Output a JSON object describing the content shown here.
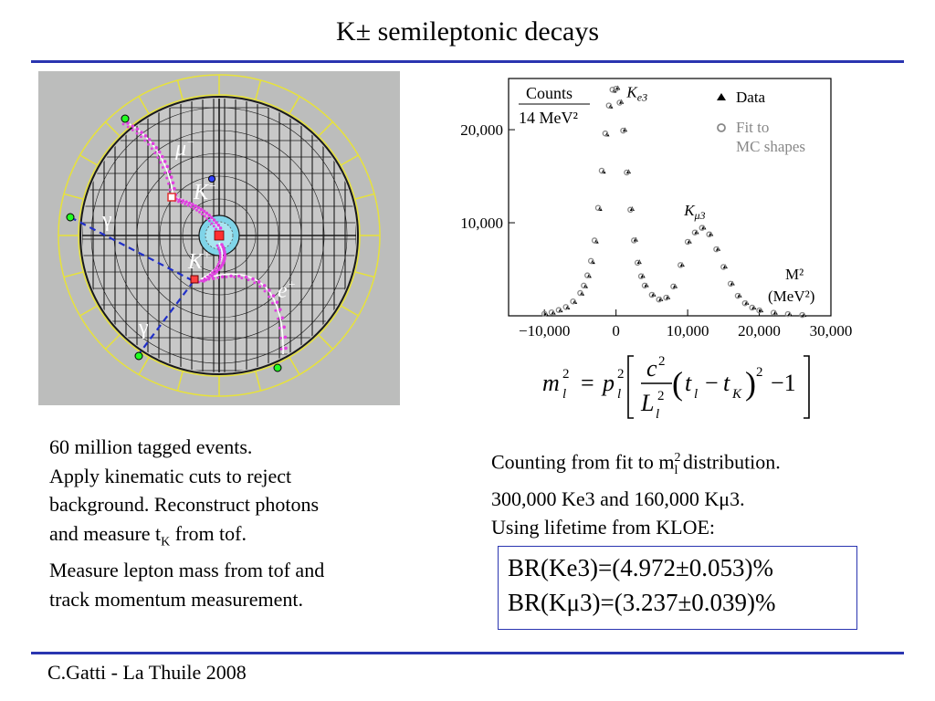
{
  "slide": {
    "title": "K± semileptonic decays",
    "footer": "C.Gatti - La Thuile 2008"
  },
  "detector_event": {
    "labels": {
      "mu": "μ",
      "mu_charge": "−",
      "k_top": "K",
      "k_top_charge": "−",
      "k_bottom": "K",
      "k_bottom_charge": "+",
      "gamma_left": "γ",
      "gamma_bottom": "γ",
      "electron": "e",
      "electron_charge": "+"
    },
    "colors": {
      "background": "#bcbdbc",
      "outer_ring": "#e7e23a",
      "chamber_lines": "#1a1a1a",
      "hits": "#e040e0",
      "photon_path": "#2230c8",
      "tracks": "#ffffff"
    }
  },
  "chart_data": {
    "type": "scatter",
    "ylabel": "Counts",
    "ylabel_unit": "14 MeV²",
    "xlabel": "M²",
    "xlabel_unit": "(MeV²)",
    "xlim": [
      -15000,
      30000
    ],
    "ylim": [
      0,
      25500
    ],
    "x_ticks": [
      -10000,
      0,
      10000,
      20000,
      30000
    ],
    "x_tick_labels": [
      "−10,000",
      "0",
      "10,000",
      "20,000",
      "30,000"
    ],
    "y_ticks": [
      10000,
      20000
    ],
    "y_tick_labels": [
      "10,000",
      "20,000"
    ],
    "grid": false,
    "legend_position": "top-right",
    "peak_labels": [
      {
        "text": "Ke3",
        "x": 1500,
        "y": 23500
      },
      {
        "text": "Kμ3",
        "x": 9500,
        "y": 10800
      }
    ],
    "series": [
      {
        "name": "Data",
        "marker": "triangle",
        "color": "#000000",
        "x": [
          -10000,
          -9000,
          -8000,
          -7000,
          -6000,
          -5000,
          -4500,
          -4000,
          -3500,
          -3000,
          -2500,
          -2000,
          -1500,
          -1000,
          -500,
          0,
          500,
          1000,
          1500,
          2000,
          2500,
          3000,
          3500,
          4000,
          5000,
          6000,
          7000,
          8000,
          9000,
          10000,
          11000,
          12000,
          13000,
          14000,
          15000,
          16000,
          17000,
          18000,
          19000,
          20000,
          22000,
          24000,
          26000
        ],
        "y": [
          200,
          350,
          600,
          900,
          1500,
          2400,
          3200,
          4300,
          5800,
          8000,
          11500,
          15500,
          19500,
          22500,
          24200,
          24500,
          23000,
          20000,
          15500,
          11500,
          8200,
          5800,
          4300,
          3300,
          2300,
          1800,
          2000,
          3200,
          5500,
          8000,
          9000,
          9500,
          8800,
          7200,
          5300,
          3500,
          2200,
          1400,
          900,
          600,
          350,
          200,
          100
        ]
      },
      {
        "name": "Fit to MC shapes",
        "marker": "circle",
        "color": "#888888",
        "x": [
          -10000,
          -9000,
          -8000,
          -7000,
          -6000,
          -5000,
          -4500,
          -4000,
          -3500,
          -3000,
          -2500,
          -2000,
          -1500,
          -1000,
          -500,
          0,
          500,
          1000,
          1500,
          2000,
          2500,
          3000,
          3500,
          4000,
          5000,
          6000,
          7000,
          8000,
          9000,
          10000,
          11000,
          12000,
          13000,
          14000,
          15000,
          16000,
          17000,
          18000,
          19000,
          20000,
          22000,
          24000,
          26000
        ],
        "y": [
          220,
          370,
          620,
          950,
          1550,
          2450,
          3250,
          4350,
          5900,
          8100,
          11600,
          15600,
          19600,
          22600,
          24300,
          24400,
          22900,
          19900,
          15400,
          11400,
          8100,
          5700,
          4250,
          3250,
          2250,
          1750,
          1950,
          3150,
          5450,
          7950,
          8950,
          9450,
          8750,
          7150,
          5250,
          3450,
          2150,
          1350,
          880,
          580,
          330,
          190,
          90
        ]
      }
    ]
  },
  "formula": {
    "lhs": "m",
    "lhs_sub": "l",
    "lhs_sup": "2",
    "eq": "=",
    "p": "p",
    "p_sub": "l",
    "p_sup": "2",
    "num": "c",
    "num_sup": "2",
    "den": "L",
    "den_sub": "l",
    "den_sup": "2",
    "t1": "t",
    "t1_sub": "l",
    "minus": "−",
    "t2": "t",
    "t2_sub": "K",
    "sq": "2",
    "minus_one": "−1"
  },
  "left_text": {
    "line1": "60 million tagged events.",
    "line2": "Apply kinematic cuts to reject",
    "line3": "background. Reconstruct photons",
    "line4_a": "and measure t",
    "line4_sub": "K",
    "line4_b": " from tof.",
    "line5": "Measure lepton mass from tof and",
    "line6": "track momentum measurement."
  },
  "right_text": {
    "line1_a": "Counting from fit to m",
    "line1_sup": "2",
    "line1_sub": "l",
    "line1_b": " distribution.",
    "line2": "300,000 Ke3 and 160,000 Kμ3.",
    "line3": "Using lifetime from KLOE:"
  },
  "results": {
    "br_ke3": "BR(Ke3)=(4.972±0.053)%",
    "br_kmu3": "BR(Kμ3)=(3.237±0.039)%"
  }
}
